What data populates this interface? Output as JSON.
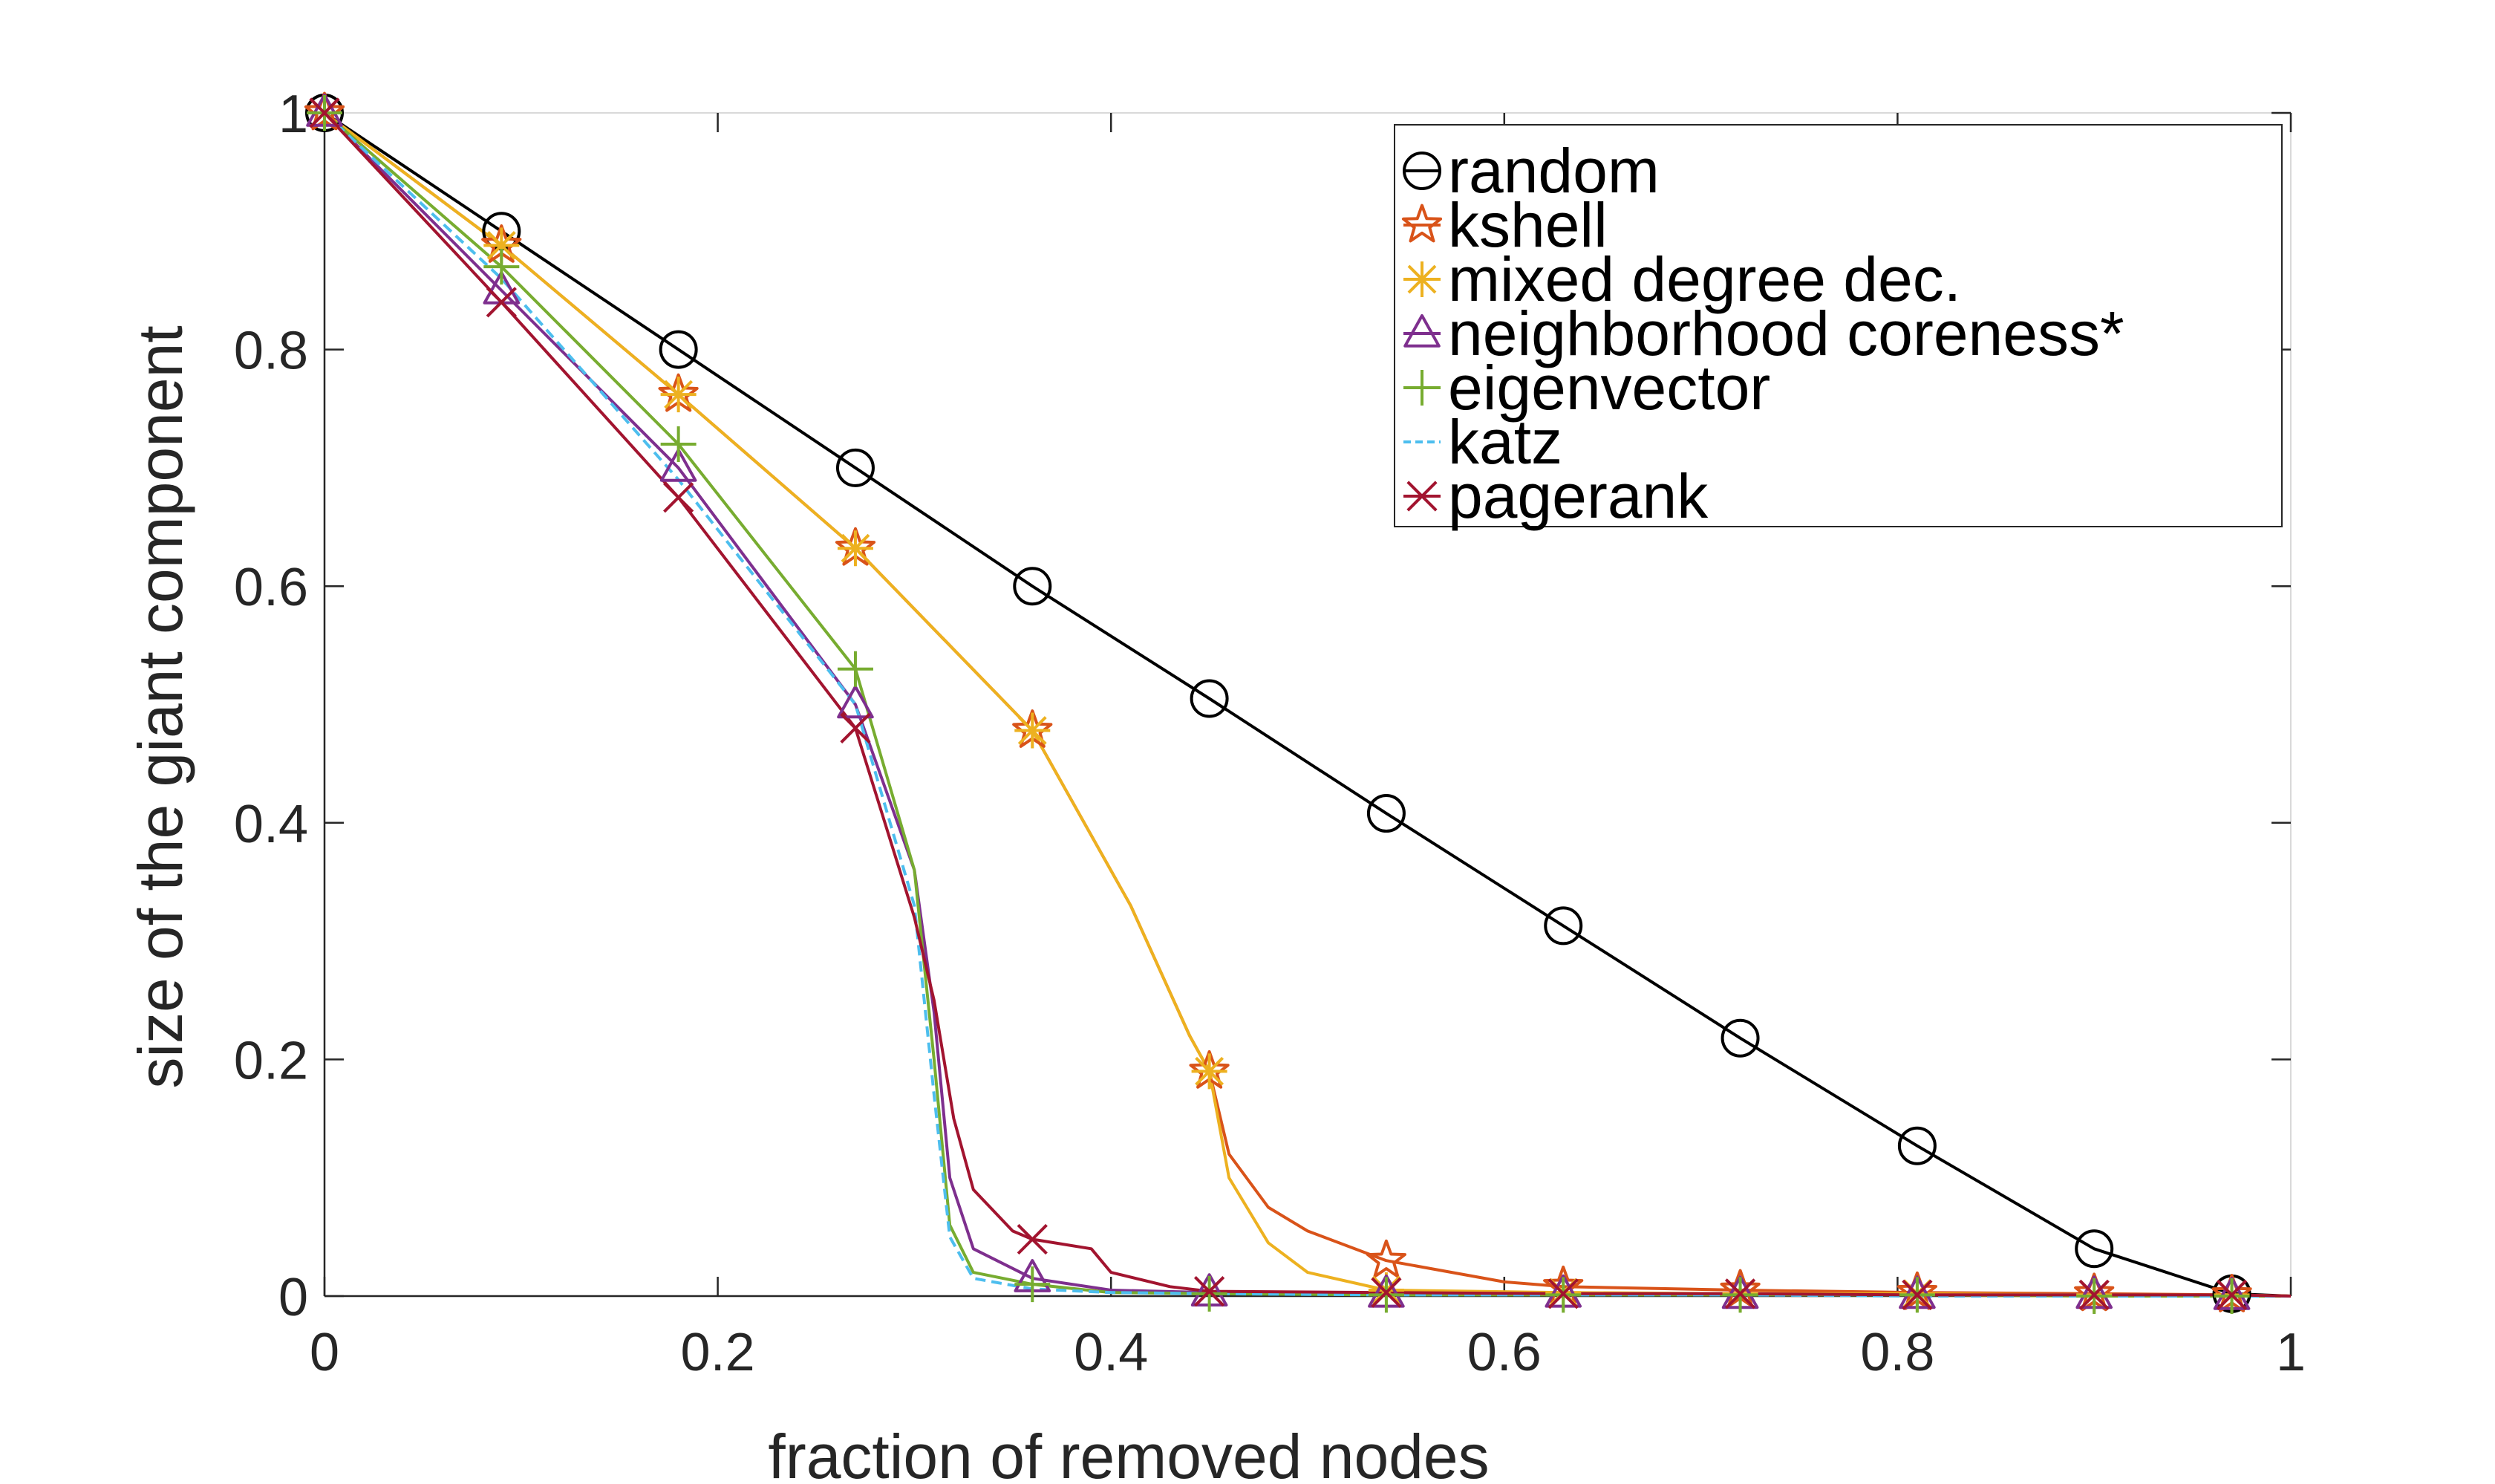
{
  "chart_data": {
    "type": "line",
    "xlabel": "fraction of removed nodes",
    "ylabel": "size of the giant component",
    "xlim": [
      0,
      1
    ],
    "ylim": [
      0,
      1
    ],
    "xticks": [
      "0",
      "0.2",
      "0.4",
      "0.6",
      "0.8",
      "1"
    ],
    "yticks": [
      "0",
      "0.2",
      "0.4",
      "0.6",
      "0.8",
      "1"
    ],
    "grid": false,
    "legend_position": "top-right",
    "series": [
      {
        "name": "random",
        "color": "#000000",
        "marker": "circle",
        "dash": false,
        "x": [
          0,
          0.09,
          0.18,
          0.27,
          0.36,
          0.45,
          0.54,
          0.63,
          0.72,
          0.81,
          0.9,
          0.97,
          1.0
        ],
        "y": [
          1.0,
          0.9,
          0.8,
          0.7,
          0.6,
          0.505,
          0.408,
          0.313,
          0.218,
          0.127,
          0.04,
          0.002,
          0.0
        ]
      },
      {
        "name": "kshell",
        "color": "#D95319",
        "marker": "pentagram",
        "dash": false,
        "x": [
          0,
          0.09,
          0.18,
          0.27,
          0.36,
          0.41,
          0.44,
          0.45,
          0.46,
          0.48,
          0.5,
          0.54,
          0.6,
          0.63,
          0.72,
          0.81,
          0.9,
          0.97,
          1.0
        ],
        "y": [
          1.0,
          0.888,
          0.762,
          0.632,
          0.478,
          0.33,
          0.22,
          0.19,
          0.12,
          0.075,
          0.055,
          0.03,
          0.012,
          0.008,
          0.005,
          0.003,
          0.002,
          0.001,
          0.0
        ]
      },
      {
        "name": "mixed degree dec.",
        "color": "#EDB120",
        "marker": "asterisk",
        "dash": false,
        "x": [
          0,
          0.09,
          0.18,
          0.27,
          0.36,
          0.41,
          0.44,
          0.45,
          0.46,
          0.48,
          0.5,
          0.54,
          0.63,
          0.72,
          0.81,
          0.9,
          0.97,
          1.0
        ],
        "y": [
          1.0,
          0.888,
          0.762,
          0.632,
          0.478,
          0.33,
          0.22,
          0.19,
          0.1,
          0.045,
          0.02,
          0.005,
          0.003,
          0.002,
          0.002,
          0.001,
          0.001,
          0.0
        ]
      },
      {
        "name": "neighborhood coreness*",
        "color": "#7E2F8E",
        "marker": "triangle",
        "dash": false,
        "x": [
          0,
          0.09,
          0.18,
          0.27,
          0.3,
          0.31,
          0.318,
          0.33,
          0.36,
          0.4,
          0.45,
          0.54,
          0.63,
          0.72,
          0.81,
          0.9,
          0.97,
          1.0
        ],
        "y": [
          1.0,
          0.85,
          0.7,
          0.5,
          0.36,
          0.24,
          0.1,
          0.04,
          0.015,
          0.005,
          0.003,
          0.002,
          0.002,
          0.001,
          0.001,
          0.001,
          0.0,
          0.0
        ]
      },
      {
        "name": "eigenvector",
        "color": "#77AC30",
        "marker": "plus",
        "dash": false,
        "x": [
          0,
          0.09,
          0.18,
          0.27,
          0.3,
          0.31,
          0.318,
          0.33,
          0.36,
          0.4,
          0.45,
          0.54,
          0.63,
          0.72,
          0.81,
          0.9,
          0.97,
          1.0
        ],
        "y": [
          1.0,
          0.87,
          0.72,
          0.53,
          0.36,
          0.2,
          0.06,
          0.02,
          0.01,
          0.003,
          0.002,
          0.001,
          0.001,
          0.001,
          0.001,
          0.0,
          0.0,
          0.0
        ]
      },
      {
        "name": "katz",
        "color": "#4DBEEE",
        "marker": "none",
        "dash": true,
        "x": [
          0,
          0.09,
          0.18,
          0.27,
          0.3,
          0.31,
          0.318,
          0.33,
          0.36,
          0.4,
          0.45,
          0.54,
          0.63,
          0.72,
          0.81,
          0.9,
          0.97,
          1.0
        ],
        "y": [
          1.0,
          0.86,
          0.69,
          0.5,
          0.33,
          0.17,
          0.05,
          0.015,
          0.006,
          0.003,
          0.002,
          0.001,
          0.001,
          0.001,
          0.0,
          0.0,
          0.0,
          0.0
        ]
      },
      {
        "name": "pagerank",
        "color": "#A2142F",
        "marker": "x",
        "dash": false,
        "x": [
          0,
          0.09,
          0.18,
          0.27,
          0.3,
          0.31,
          0.32,
          0.33,
          0.35,
          0.36,
          0.39,
          0.4,
          0.43,
          0.45,
          0.54,
          0.63,
          0.72,
          0.81,
          0.9,
          0.97,
          1.0
        ],
        "y": [
          1.0,
          0.84,
          0.675,
          0.48,
          0.32,
          0.25,
          0.15,
          0.09,
          0.055,
          0.048,
          0.04,
          0.02,
          0.008,
          0.004,
          0.003,
          0.002,
          0.002,
          0.001,
          0.001,
          0.001,
          0.0
        ]
      }
    ]
  }
}
